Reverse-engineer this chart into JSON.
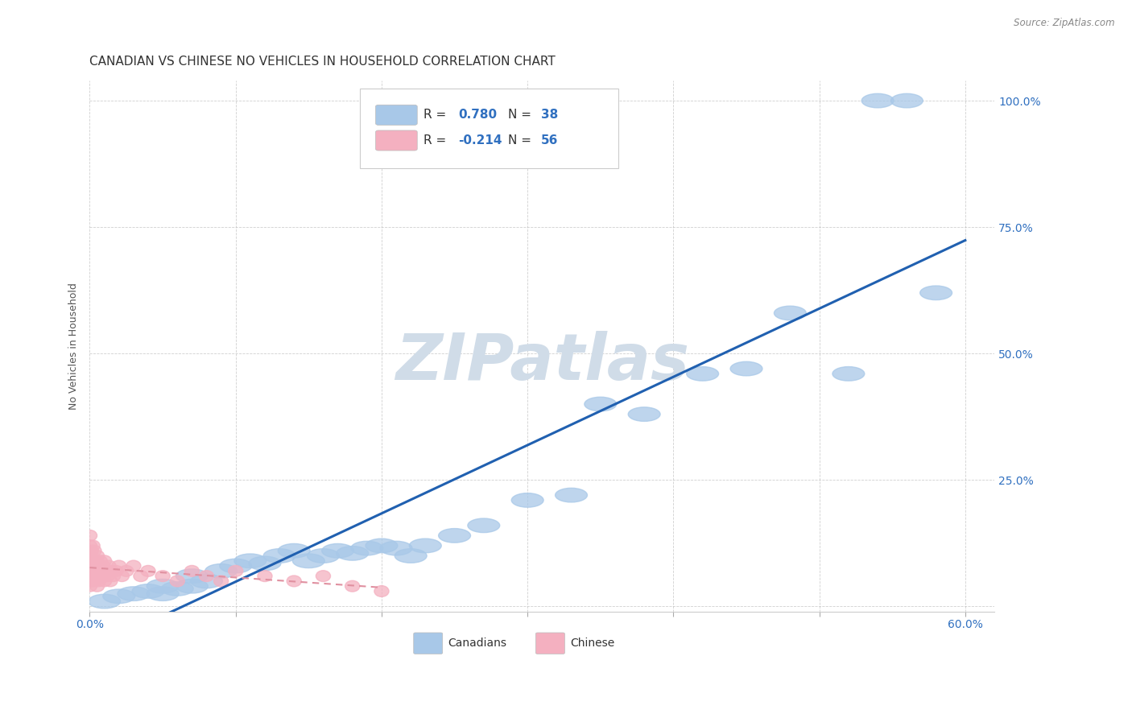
{
  "title": "CANADIAN VS CHINESE NO VEHICLES IN HOUSEHOLD CORRELATION CHART",
  "source": "Source: ZipAtlas.com",
  "ylabel": "No Vehicles in Household",
  "xlim": [
    0.0,
    0.62
  ],
  "ylim": [
    -0.01,
    1.04
  ],
  "R_canadian": 0.78,
  "N_canadian": 38,
  "R_chinese": -0.214,
  "N_chinese": 56,
  "canadian_color": "#a8c8e8",
  "chinese_color": "#f4b0c0",
  "trend_canadian_color": "#2060b0",
  "trend_chinese_color": "#e090a0",
  "background_color": "#ffffff",
  "grid_color": "#bbbbbb",
  "watermark": "ZIPatlas",
  "watermark_color": "#d0dce8",
  "canadian_x": [
    0.01,
    0.02,
    0.03,
    0.04,
    0.05,
    0.05,
    0.06,
    0.07,
    0.07,
    0.08,
    0.09,
    0.1,
    0.11,
    0.12,
    0.13,
    0.14,
    0.15,
    0.16,
    0.17,
    0.18,
    0.19,
    0.2,
    0.21,
    0.22,
    0.23,
    0.25,
    0.27,
    0.3,
    0.33,
    0.35,
    0.38,
    0.42,
    0.45,
    0.48,
    0.52,
    0.54,
    0.56,
    0.58
  ],
  "canadian_y": [
    0.01,
    0.02,
    0.025,
    0.03,
    0.025,
    0.04,
    0.035,
    0.04,
    0.06,
    0.05,
    0.07,
    0.08,
    0.09,
    0.085,
    0.1,
    0.11,
    0.09,
    0.1,
    0.11,
    0.105,
    0.115,
    0.12,
    0.115,
    0.1,
    0.12,
    0.14,
    0.16,
    0.21,
    0.22,
    0.4,
    0.38,
    0.46,
    0.47,
    0.58,
    0.46,
    1.0,
    1.0,
    0.62
  ],
  "chinese_x": [
    0.0,
    0.0,
    0.0,
    0.0,
    0.0,
    0.0,
    0.0,
    0.0,
    0.0,
    0.001,
    0.001,
    0.001,
    0.001,
    0.002,
    0.002,
    0.002,
    0.003,
    0.003,
    0.003,
    0.004,
    0.004,
    0.005,
    0.005,
    0.005,
    0.006,
    0.006,
    0.007,
    0.007,
    0.008,
    0.009,
    0.01,
    0.01,
    0.011,
    0.012,
    0.013,
    0.014,
    0.015,
    0.016,
    0.018,
    0.02,
    0.022,
    0.025,
    0.03,
    0.035,
    0.04,
    0.05,
    0.06,
    0.07,
    0.08,
    0.09,
    0.1,
    0.12,
    0.14,
    0.16,
    0.18,
    0.2
  ],
  "chinese_y": [
    0.04,
    0.05,
    0.06,
    0.07,
    0.08,
    0.09,
    0.1,
    0.12,
    0.14,
    0.05,
    0.07,
    0.09,
    0.11,
    0.06,
    0.08,
    0.12,
    0.05,
    0.08,
    0.11,
    0.06,
    0.09,
    0.04,
    0.07,
    0.1,
    0.05,
    0.08,
    0.06,
    0.09,
    0.07,
    0.08,
    0.05,
    0.09,
    0.07,
    0.06,
    0.08,
    0.05,
    0.07,
    0.06,
    0.07,
    0.08,
    0.06,
    0.07,
    0.08,
    0.06,
    0.07,
    0.06,
    0.05,
    0.07,
    0.06,
    0.05,
    0.07,
    0.06,
    0.05,
    0.06,
    0.04,
    0.03
  ],
  "tick_fontsize": 10,
  "legend_R_color": "#3070c0",
  "legend_N_color": "#333333",
  "axis_color": "#3070c0"
}
